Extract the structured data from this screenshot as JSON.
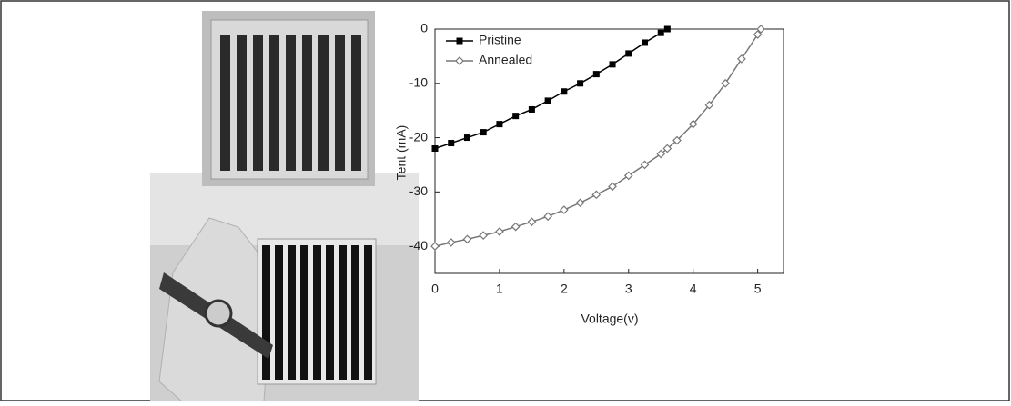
{
  "chart_data": {
    "type": "line",
    "x_label": "Voltage(v)",
    "y_label": "Tent (mA)",
    "x": [
      0,
      0.25,
      0.5,
      0.75,
      1,
      1.25,
      1.5,
      1.75,
      2,
      2.25,
      2.5,
      2.75,
      3,
      3.25,
      3.5,
      3.6,
      3.75,
      4,
      4.25,
      4.5,
      4.75,
      5,
      5.05
    ],
    "series": [
      {
        "name": "Pristine",
        "color": "#000000",
        "marker": "square",
        "values": [
          -22,
          -21,
          -20,
          -19,
          -17.5,
          -16,
          -14.8,
          -13.2,
          -11.5,
          -10,
          -8.3,
          -6.5,
          -4.5,
          -2.5,
          -0.7,
          0,
          null,
          null,
          null,
          null,
          null,
          null,
          null
        ]
      },
      {
        "name": "Annealed",
        "color": "#777777",
        "marker": "diamond",
        "values": [
          -40,
          -39.3,
          -38.7,
          -38,
          -37.3,
          -36.4,
          -35.5,
          -34.5,
          -33.3,
          -32,
          -30.5,
          -29,
          -27,
          -25,
          -23,
          -22,
          -20.5,
          -17.5,
          -14,
          -10,
          -5.5,
          -1,
          0
        ]
      }
    ],
    "xlim": [
      0,
      5.4
    ],
    "xticks": [
      0,
      1,
      2,
      3,
      4,
      5
    ],
    "ylim": [
      -45,
      0
    ],
    "yticks": [
      0,
      -10,
      -20,
      -30,
      -40
    ],
    "grid": false,
    "legend": "top-left"
  }
}
